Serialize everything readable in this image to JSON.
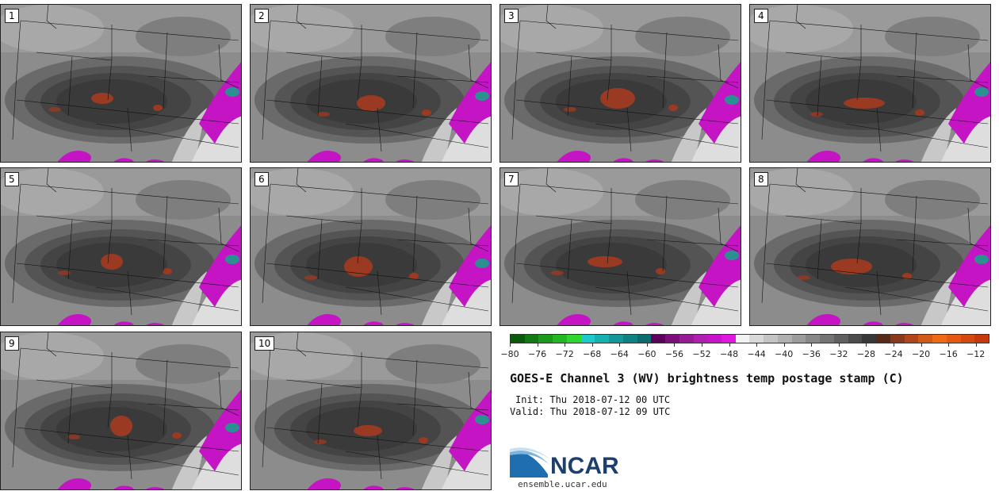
{
  "panels": [
    {
      "label": "1"
    },
    {
      "label": "2"
    },
    {
      "label": "3"
    },
    {
      "label": "4"
    },
    {
      "label": "5"
    },
    {
      "label": "6"
    },
    {
      "label": "7"
    },
    {
      "label": "8"
    },
    {
      "label": "9"
    },
    {
      "label": "10"
    }
  ],
  "colorbar": {
    "colors": [
      "#0b5a0b",
      "#127a12",
      "#1a9a1a",
      "#23b823",
      "#2fd62f",
      "#1ec9c9",
      "#17b0b0",
      "#129898",
      "#0e8282",
      "#0a6c6c",
      "#5c005c",
      "#7a0f7a",
      "#951c95",
      "#b020b0",
      "#c814c8",
      "#de18de",
      "#f2f2f2",
      "#d9d9d9",
      "#c4c4c4",
      "#b0b0b0",
      "#9c9c9c",
      "#888888",
      "#747474",
      "#606060",
      "#4c4c4c",
      "#383838",
      "#5a2a18",
      "#8a3a1a",
      "#b0461a",
      "#d25a18",
      "#ee6a14",
      "#e45a10",
      "#d44a0e",
      "#c43a0c"
    ],
    "ticks": [
      "-80",
      "-76",
      "-72",
      "-68",
      "-64",
      "-60",
      "-56",
      "-52",
      "-48",
      "-44",
      "-40",
      "-36",
      "-32",
      "-28",
      "-24",
      "-20",
      "-16",
      "-12"
    ],
    "tick_values": [
      -80,
      -76,
      -72,
      -68,
      -64,
      -60,
      -56,
      -52,
      -48,
      -44,
      -40,
      -36,
      -32,
      -28,
      -24,
      -20,
      -16,
      -12
    ],
    "range": [
      -80,
      -10
    ]
  },
  "title": "GOES-E Channel 3 (WV) brightness temp postage stamp (C)",
  "init_label": "Init:",
  "init_value": "Thu 2018-07-12 00 UTC",
  "valid_label": "Valid:",
  "valid_value": "Thu 2018-07-12 09 UTC",
  "logo": {
    "name": "NCAR",
    "url": "ensemble.ucar.edu"
  },
  "colors": {
    "background_gray": "#8a8a8a",
    "dry_dark": "#3a3a3a",
    "cold_red": "#9a3a22",
    "magenta": "#c414c4",
    "teal": "#2a9090"
  }
}
